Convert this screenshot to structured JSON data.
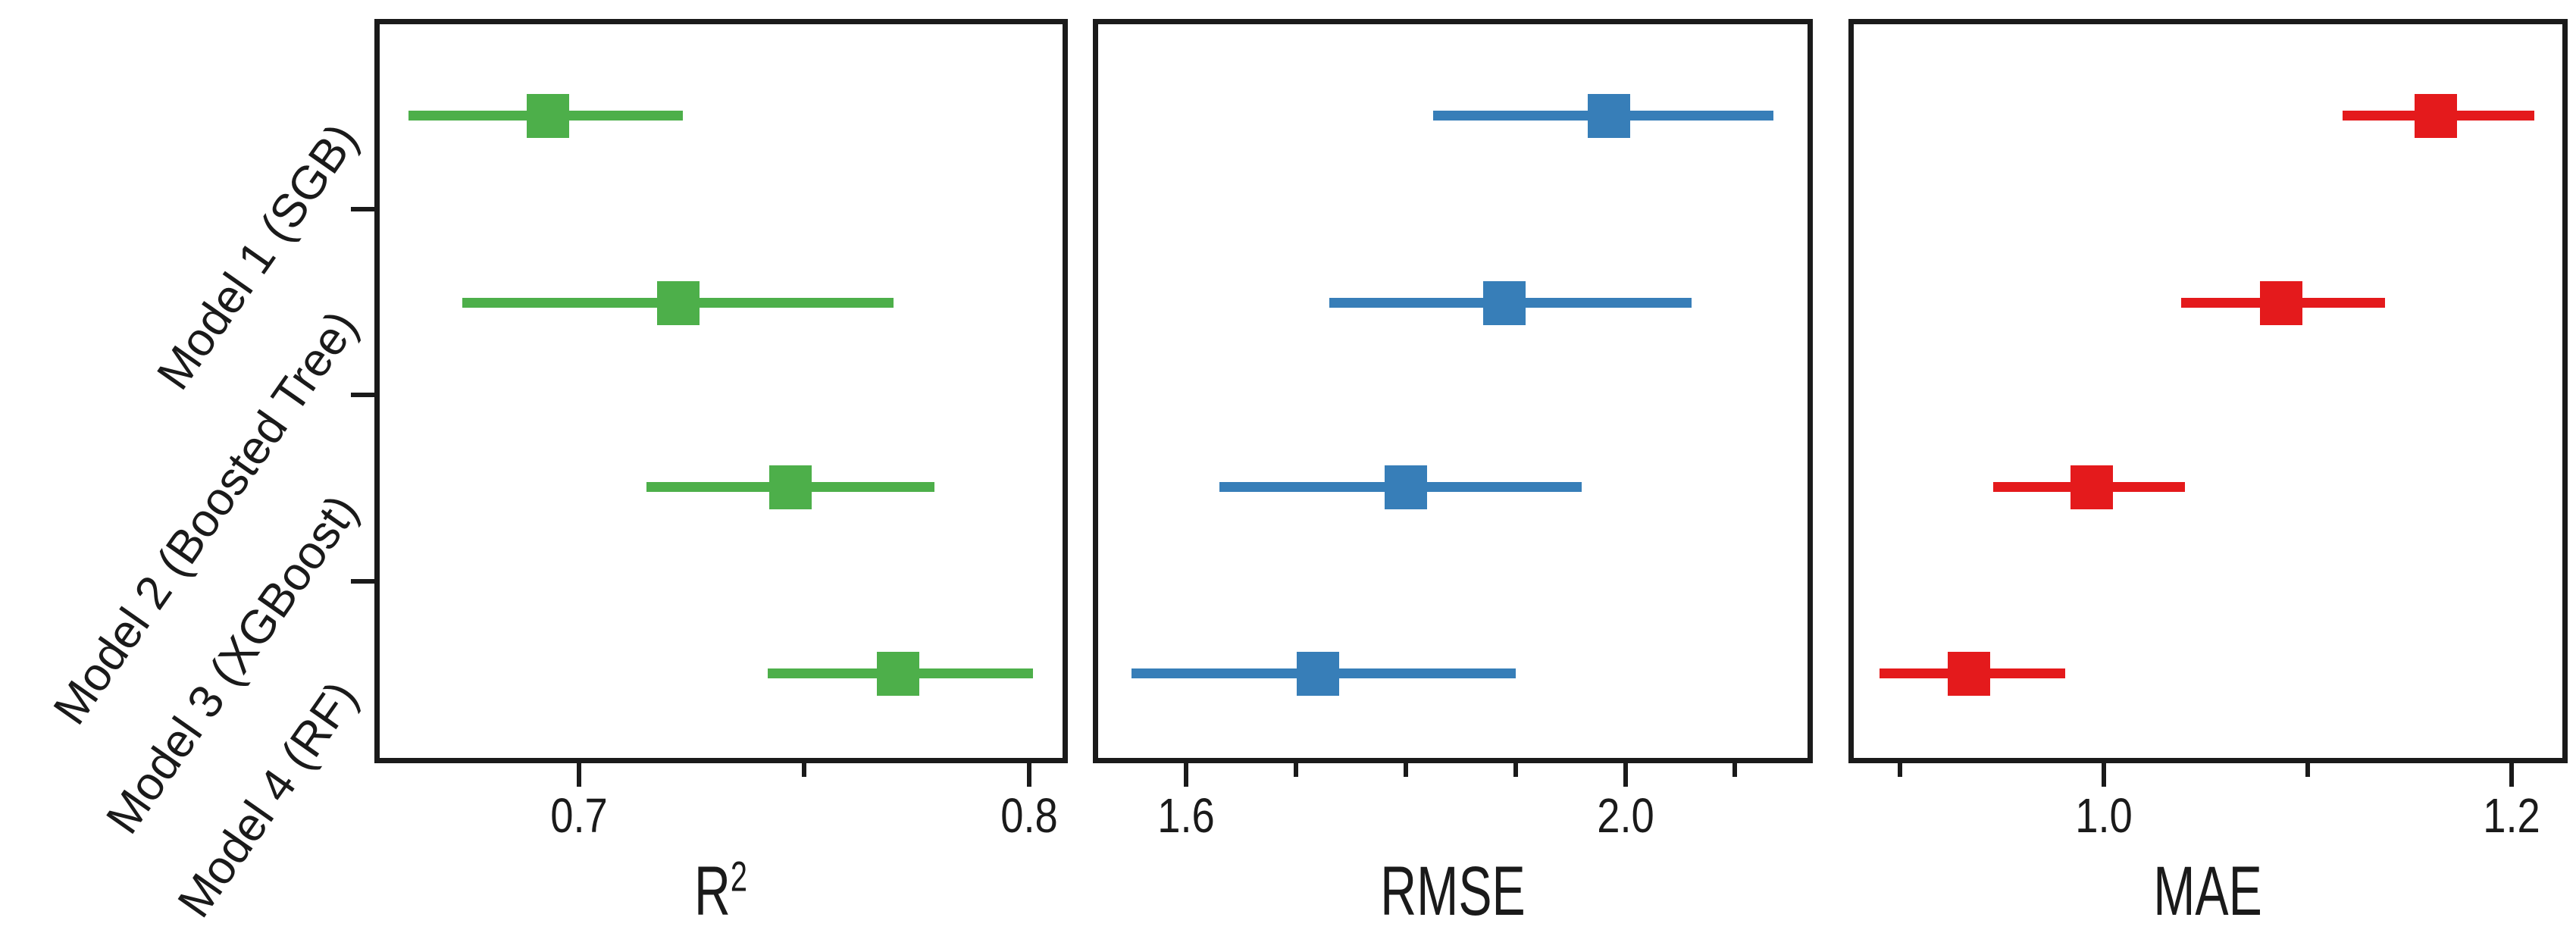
{
  "figure": {
    "background": "#ffffff",
    "frame_color": "#1a1a1a"
  },
  "chart_data": {
    "type": "scatter",
    "subtype": "horizontal-error-bars",
    "grid": false,
    "legend_position": "none",
    "categories": [
      "Model 1 (SGB)",
      "Model 2 (Boosted Tree)",
      "Model 3 (XGBoost)",
      "Model 4 (RF)"
    ],
    "panels": [
      {
        "xlabel": "R2",
        "xlabel_base": "R",
        "xlabel_sup": "2",
        "color": "#4daf4a",
        "xlim": [
          0.655,
          0.808
        ],
        "xticks": [
          {
            "value": 0.7,
            "label": "0.7"
          },
          {
            "value": 0.8,
            "label": "0.8"
          }
        ],
        "xticks_minor": [
          0.75
        ],
        "series": [
          {
            "name": "R2",
            "points": [
              {
                "category": "Model 1 (SGB)",
                "x": 0.693,
                "x_lo": 0.662,
                "x_hi": 0.723
              },
              {
                "category": "Model 2 (Boosted Tree)",
                "x": 0.722,
                "x_lo": 0.674,
                "x_hi": 0.77
              },
              {
                "category": "Model 3 (XGBoost)",
                "x": 0.747,
                "x_lo": 0.715,
                "x_hi": 0.779
              },
              {
                "category": "Model 4 (RF)",
                "x": 0.771,
                "x_lo": 0.742,
                "x_hi": 0.801
              }
            ]
          }
        ]
      },
      {
        "xlabel": "RMSE",
        "xlabel_base": "RMSE",
        "xlabel_sup": "",
        "color": "#377eb8",
        "xlim": [
          1.517,
          2.168
        ],
        "xticks": [
          {
            "value": 1.6,
            "label": "1.6"
          },
          {
            "value": 2.0,
            "label": "2.0"
          }
        ],
        "xticks_minor": [
          1.7,
          1.8,
          1.9,
          2.1
        ],
        "series": [
          {
            "name": "RMSE",
            "points": [
              {
                "category": "Model 1 (SGB)",
                "x": 1.985,
                "x_lo": 1.825,
                "x_hi": 2.135
              },
              {
                "category": "Model 2 (Boosted Tree)",
                "x": 1.89,
                "x_lo": 1.73,
                "x_hi": 2.06
              },
              {
                "category": "Model 3 (XGBoost)",
                "x": 1.8,
                "x_lo": 1.63,
                "x_hi": 1.96
              },
              {
                "category": "Model 4 (RF)",
                "x": 1.72,
                "x_lo": 1.55,
                "x_hi": 1.9
              }
            ]
          }
        ]
      },
      {
        "xlabel": "MAE",
        "xlabel_base": "MAE",
        "xlabel_sup": "",
        "color": "#e41a1c",
        "xlim": [
          0.876,
          1.226
        ],
        "xticks": [
          {
            "value": 1.0,
            "label": "1.0"
          },
          {
            "value": 1.2,
            "label": "1.2"
          }
        ],
        "xticks_minor": [
          0.9,
          1.1
        ],
        "series": [
          {
            "name": "MAE",
            "points": [
              {
                "category": "Model 1 (SGB)",
                "x": 1.163,
                "x_lo": 1.117,
                "x_hi": 1.211
              },
              {
                "category": "Model 2 (Boosted Tree)",
                "x": 1.087,
                "x_lo": 1.038,
                "x_hi": 1.138
              },
              {
                "category": "Model 3 (XGBoost)",
                "x": 0.994,
                "x_lo": 0.946,
                "x_hi": 1.04
              },
              {
                "category": "Model 4 (RF)",
                "x": 0.934,
                "x_lo": 0.89,
                "x_hi": 0.981
              }
            ]
          }
        ]
      }
    ]
  }
}
